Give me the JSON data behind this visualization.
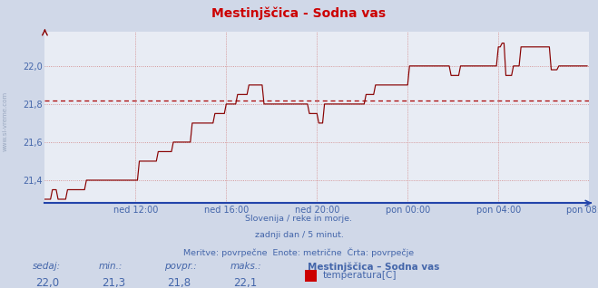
{
  "title": "Mestinjščica - Sodna vas",
  "bg_color": "#d0d8e8",
  "plot_bg_color": "#e8ecf4",
  "grid_color_h": "#c8a0a0",
  "grid_color_v": "#c0b0b0",
  "line_color": "#880000",
  "avg_line_color": "#aa0000",
  "avg_value": 21.82,
  "ylim": [
    21.28,
    22.18
  ],
  "yticks": [
    21.4,
    21.6,
    21.8,
    22.0
  ],
  "title_color": "#cc0000",
  "title_fontsize": 10,
  "xtick_labels": [
    "ned 12:00",
    "ned 16:00",
    "ned 20:00",
    "pon 00:00",
    "pon 04:00",
    "pon 08:00"
  ],
  "tick_color": "#4466aa",
  "footer_lines": [
    "Slovenija / reke in morje.",
    "zadnji dan / 5 minut.",
    "Meritve: povrpečne  Enote: metrične  Črta: povrpečje"
  ],
  "footer_color": "#4466aa",
  "legend_title": "Mestinjščica – Sodna vas",
  "legend_label": "temperatura[C]",
  "legend_color": "#cc0000",
  "stat_labels": [
    "sedaj:",
    "min.:",
    "povpr.:",
    "maks.:"
  ],
  "stat_values": [
    "22,0",
    "21,3",
    "21,8",
    "22,1"
  ],
  "stat_color": "#4466aa",
  "left_label": "www.si-vreme.com",
  "n_points": 288,
  "xtick_positions": [
    48,
    96,
    144,
    192,
    240,
    288
  ]
}
